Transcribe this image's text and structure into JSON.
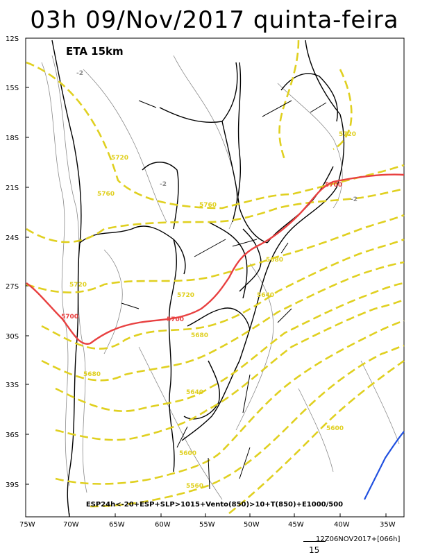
{
  "title": "03h 09/Nov/2017 quinta-feira",
  "model_label": "ETA 15km",
  "legend": "ESP24h<-20+ESP+SLP>1015+Vento(850)>10+T(850)+E1000/500",
  "footer_stamp": "12Z06NOV2017+[066h]",
  "scale_value": "15",
  "lat_ticks": [
    "12S",
    "15S",
    "18S",
    "21S",
    "24S",
    "27S",
    "30S",
    "33S",
    "36S",
    "39S"
  ],
  "lon_ticks": [
    "75W",
    "70W",
    "65W",
    "60W",
    "55W",
    "50W",
    "45W",
    "40W",
    "35W"
  ],
  "contour_labels": {
    "thickness_yellow": [
      "5760",
      "5720",
      "5720",
      "5680",
      "5640",
      "5600",
      "5560",
      "5720",
      "5680",
      "5640",
      "5760",
      "5720",
      "5680",
      "5600"
    ],
    "thickness_red": [
      "5700",
      "5700",
      "5700"
    ],
    "slp_gray": [
      "-2",
      "-2",
      "-2"
    ]
  },
  "colors": {
    "thickness_5700": "#e84040",
    "thickness_other": "#e0d020",
    "slp_contours": "#8a8a8a",
    "temperature_line": "#2050e0",
    "borders": "#000000"
  }
}
